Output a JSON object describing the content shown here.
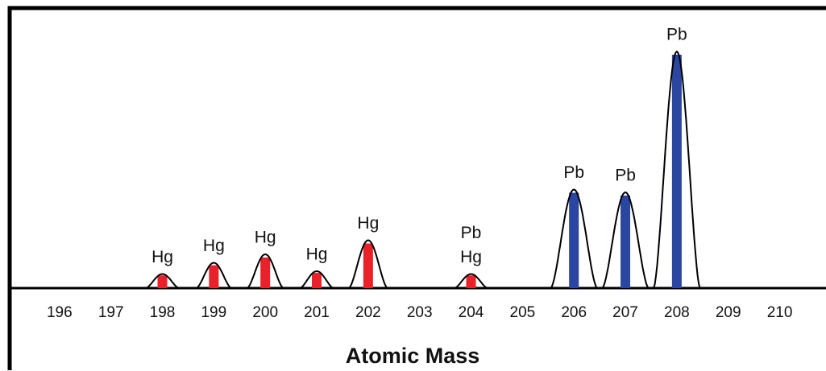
{
  "chart_data": {
    "type": "peaks",
    "x_label": "Atomic Mass",
    "xlim": [
      195,
      210.9
    ],
    "ylim": [
      0,
      100
    ],
    "xticks": [
      196,
      197,
      198,
      199,
      200,
      201,
      202,
      203,
      204,
      205,
      206,
      207,
      208,
      209,
      210
    ],
    "peaks": [
      {
        "x": 198,
        "value": 5,
        "labels": [
          "Hg"
        ],
        "color": "#e8212a"
      },
      {
        "x": 199,
        "value": 9,
        "labels": [
          "Hg"
        ],
        "color": "#e8212a"
      },
      {
        "x": 200,
        "value": 12,
        "labels": [
          "Hg"
        ],
        "color": "#e8212a"
      },
      {
        "x": 201,
        "value": 6,
        "labels": [
          "Hg"
        ],
        "color": "#e8212a"
      },
      {
        "x": 202,
        "value": 17,
        "labels": [
          "Hg"
        ],
        "color": "#e8212a"
      },
      {
        "x": 204,
        "value": 5,
        "labels": [
          "Pb",
          "Hg"
        ],
        "color": "#e8212a"
      },
      {
        "x": 206,
        "value": 35,
        "labels": [
          "Pb"
        ],
        "color": "#2a46a0"
      },
      {
        "x": 207,
        "value": 34,
        "labels": [
          "Pb"
        ],
        "color": "#2a46a0"
      },
      {
        "x": 208,
        "value": 84,
        "labels": [
          "Pb"
        ],
        "color": "#2a46a0"
      }
    ]
  }
}
